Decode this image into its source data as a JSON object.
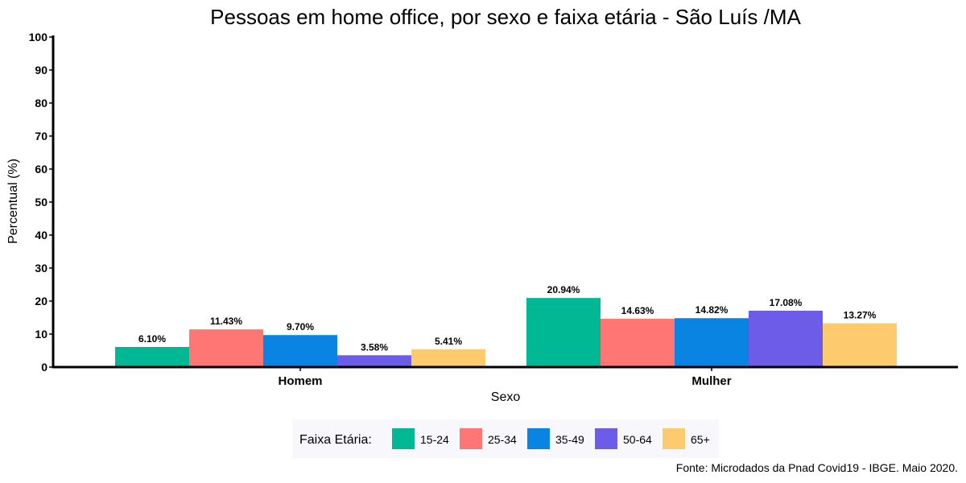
{
  "chart_data": {
    "type": "bar",
    "title": "Pessoas em home office, por sexo e faixa etária - São Luís /MA",
    "xlabel": "Sexo",
    "ylabel": "Percentual (%)",
    "ylim": [
      0,
      100
    ],
    "yticks": [
      "0",
      "10",
      "20",
      "30",
      "40",
      "50",
      "60",
      "70",
      "80",
      "90",
      "100"
    ],
    "categories": [
      "Homem",
      "Mulher"
    ],
    "legend_title": "Faixa Etária:",
    "legend_position": "bottom",
    "grid": false,
    "series": [
      {
        "name": "15-24",
        "color": "#00B894",
        "values": [
          6.1,
          20.94
        ],
        "labels": [
          "6.10%",
          "20.94%"
        ]
      },
      {
        "name": "25-34",
        "color": "#FF7675",
        "values": [
          11.43,
          14.63
        ],
        "labels": [
          "11.43%",
          "14.63%"
        ]
      },
      {
        "name": "35-49",
        "color": "#0984E3",
        "values": [
          9.7,
          14.82
        ],
        "labels": [
          "9.70%",
          "14.82%"
        ]
      },
      {
        "name": "50-64",
        "color": "#6C5CE7",
        "values": [
          3.58,
          17.08
        ],
        "labels": [
          "3.58%",
          "17.08%"
        ]
      },
      {
        "name": "65+",
        "color": "#FDCB6E",
        "values": [
          5.41,
          13.27
        ],
        "labels": [
          "5.41%",
          "13.27%"
        ]
      }
    ],
    "caption": "Fonte: Microdados da Pnad Covid19 - IBGE. Maio 2020."
  }
}
